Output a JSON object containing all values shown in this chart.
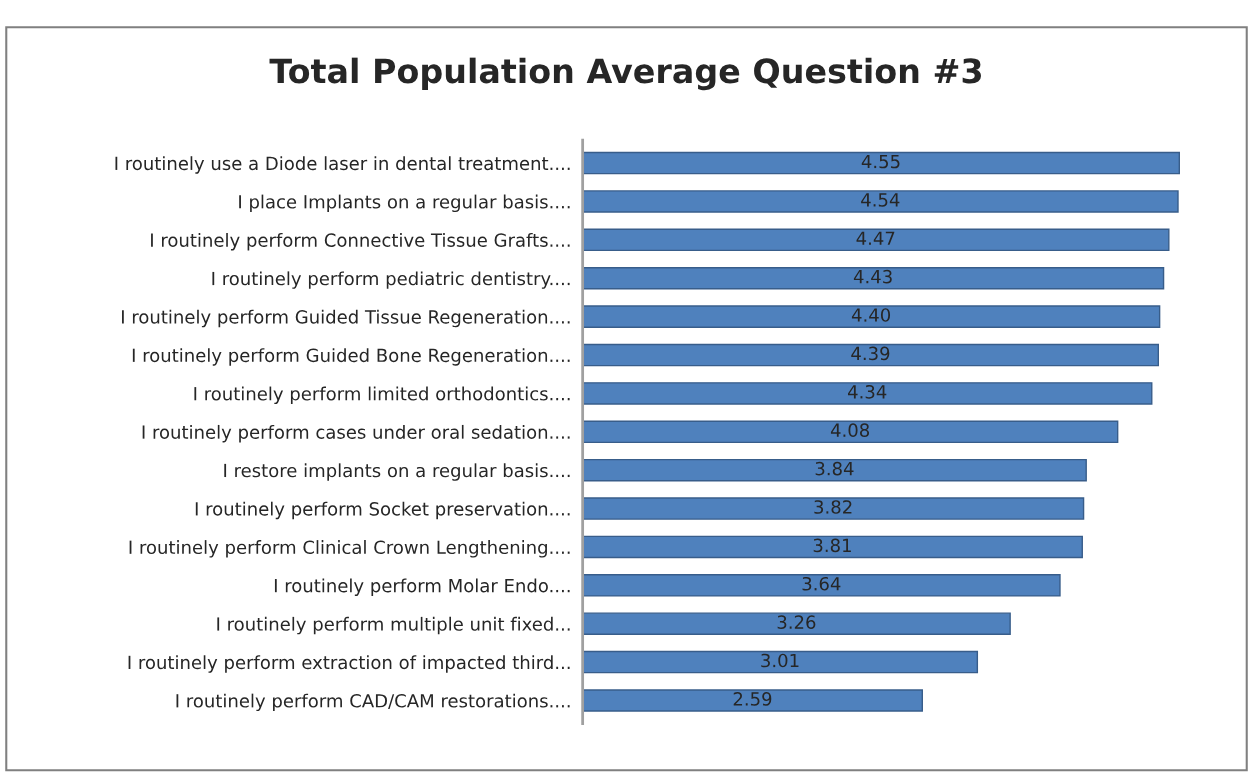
{
  "chart_data": {
    "type": "bar",
    "orientation": "horizontal",
    "title": "Total Population Average Question #3",
    "categories": [
      "I routinely use a Diode laser in dental treatment....",
      "I place Implants on a regular basis....",
      "I routinely perform Connective Tissue Grafts....",
      "I routinely perform pediatric dentistry....",
      "I routinely perform Guided Tissue Regeneration....",
      "I routinely perform Guided Bone Regeneration....",
      "I routinely perform limited orthodontics....",
      "I routinely perform cases under oral sedation....",
      "I restore implants on a regular basis....",
      "I routinely perform Socket preservation....",
      "I routinely perform Clinical Crown Lengthening....",
      "I routinely perform Molar Endo....",
      "I routinely perform multiple unit fixed...",
      "I routinely perform extraction of impacted third...",
      "I routinely perform CAD/CAM restorations...."
    ],
    "values": [
      4.55,
      4.54,
      4.47,
      4.43,
      4.4,
      4.39,
      4.34,
      4.08,
      3.84,
      3.82,
      3.81,
      3.64,
      3.26,
      3.01,
      2.59
    ],
    "value_labels": [
      "4.55",
      "4.54",
      "4.47",
      "4.43",
      "4.40",
      "4.39",
      "4.34",
      "4.08",
      "3.84",
      "3.82",
      "3.81",
      "3.64",
      "3.26",
      "3.01",
      "2.59"
    ],
    "color": "#4f81bd",
    "grid": false,
    "legend": false
  }
}
